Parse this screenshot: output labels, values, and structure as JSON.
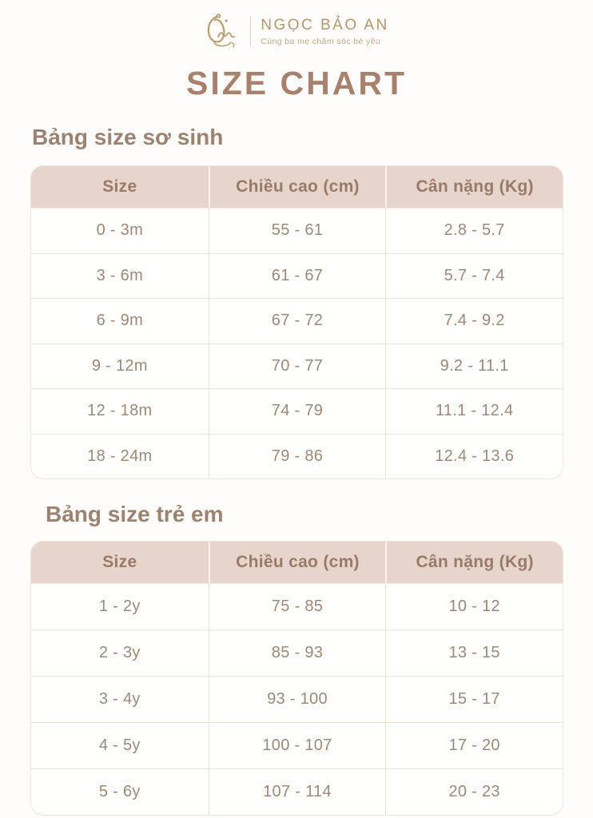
{
  "brand": {
    "name": "NGỌC BẢO AN",
    "tagline": "Cùng ba mẹ chăm sóc bé yêu"
  },
  "page_title": "SIZE CHART",
  "tables": [
    {
      "heading": "Bảng size sơ sinh",
      "columns": [
        "Size",
        "Chiều cao (cm)",
        "Cân nặng (Kg)"
      ],
      "rows": [
        [
          "0 - 3m",
          "55 - 61",
          "2.8 - 5.7"
        ],
        [
          "3 - 6m",
          "61 - 67",
          "5.7 - 7.4"
        ],
        [
          "6 - 9m",
          "67 - 72",
          "7.4 - 9.2"
        ],
        [
          "9 - 12m",
          "70 - 77",
          "9.2 - 11.1"
        ],
        [
          "12 - 18m",
          "74 - 79",
          "11.1 - 12.4"
        ],
        [
          "18 - 24m",
          "79 - 86",
          "12.4 - 13.6"
        ]
      ]
    },
    {
      "heading": "Bảng size trẻ em",
      "columns": [
        "Size",
        "Chiều cao (cm)",
        "Cân nặng (Kg)"
      ],
      "rows": [
        [
          "1 - 2y",
          "75 - 85",
          "10 - 12"
        ],
        [
          "2 - 3y",
          "85 - 93",
          "13 - 15"
        ],
        [
          "3 - 4y",
          "93 - 100",
          "15 - 17"
        ],
        [
          "4 - 5y",
          "100 - 107",
          "17 - 20"
        ],
        [
          "5 - 6y",
          "107 - 114",
          "20 - 23"
        ]
      ]
    }
  ],
  "colors": {
    "title": "#a8816c",
    "section_heading": "#9b8271",
    "table_header_bg": "#e7d4ca",
    "table_header_text": "#997a69",
    "table_body_text": "#9c8878",
    "brand_gold": "#b2966c",
    "page_bg": "#fefdfb"
  }
}
